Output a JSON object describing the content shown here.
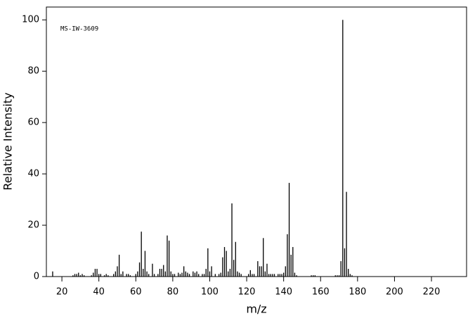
{
  "chart_data": {
    "type": "bar",
    "annotation": "MS-IW-3609",
    "xlabel": "m/z",
    "ylabel": "Relative Intensity",
    "x": [
      15,
      26,
      27,
      28,
      29,
      30,
      31,
      32,
      36,
      37,
      38,
      39,
      40,
      41,
      43,
      44,
      45,
      48,
      49,
      50,
      51,
      52,
      53,
      55,
      56,
      57,
      60,
      61,
      62,
      63,
      64,
      65,
      66,
      67,
      69,
      70,
      72,
      73,
      74,
      75,
      76,
      77,
      78,
      79,
      80,
      81,
      83,
      84,
      85,
      86,
      87,
      88,
      89,
      91,
      92,
      93,
      94,
      96,
      97,
      98,
      99,
      100,
      101,
      103,
      105,
      106,
      107,
      108,
      109,
      110,
      111,
      112,
      113,
      114,
      115,
      116,
      117,
      121,
      122,
      123,
      124,
      126,
      127,
      128,
      129,
      130,
      131,
      132,
      133,
      134,
      135,
      137,
      138,
      139,
      140,
      141,
      142,
      143,
      144,
      145,
      146,
      147,
      155,
      156,
      157,
      168,
      169,
      170,
      171,
      172,
      173,
      174,
      175,
      176,
      177
    ],
    "values": [
      2,
      0.5,
      1,
      1,
      1.5,
      0.5,
      1,
      0.5,
      0.5,
      1.5,
      3,
      3,
      1,
      1,
      0.5,
      1,
      0.5,
      1,
      2,
      4,
      8.5,
      1,
      2,
      1,
      1,
      0.5,
      1,
      2,
      5.5,
      17.5,
      3,
      10,
      2,
      1,
      5,
      1,
      1,
      3,
      3,
      4.5,
      2,
      16,
      14,
      2,
      1,
      1,
      1.5,
      1,
      1.5,
      4,
      2,
      1.5,
      1,
      2,
      1.5,
      2,
      1,
      1,
      1,
      3,
      11,
      2,
      4,
      1,
      1,
      1.5,
      7.5,
      11.5,
      10,
      2,
      3,
      28.5,
      6.5,
      13.5,
      2,
      1.5,
      1,
      1,
      2.5,
      1,
      1,
      6,
      4,
      4,
      15,
      2,
      5,
      1,
      1,
      1,
      1,
      1,
      1,
      1,
      1.5,
      4,
      16.5,
      36.5,
      8.5,
      11.5,
      1.5,
      0.5,
      0.5,
      0.5,
      0.5,
      0.5,
      0.5,
      0.5,
      6,
      100,
      11,
      33,
      3,
      1,
      0.5
    ],
    "color": "#000000",
    "xlim": [
      11.6,
      239
    ],
    "xticks": [
      20,
      40,
      60,
      80,
      100,
      120,
      140,
      160,
      180,
      200,
      220
    ],
    "ylim": [
      0,
      105
    ],
    "yticks": [
      0,
      20,
      40,
      60,
      80,
      100
    ]
  }
}
